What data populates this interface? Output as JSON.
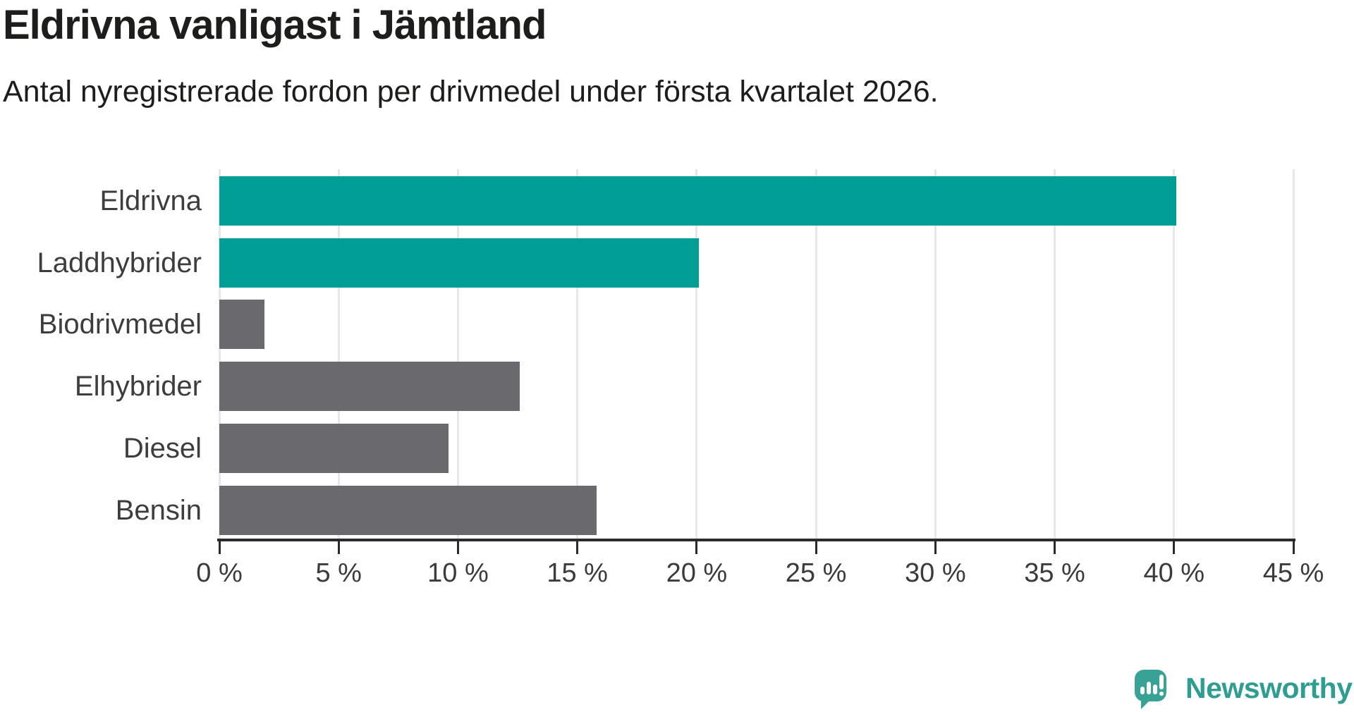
{
  "header": {
    "title": "Eldrivna vanligast i Jämtland",
    "subtitle": "Antal nyregistrerade fordon per drivmedel under första kvartalet 2026."
  },
  "chart_data": {
    "type": "bar",
    "orientation": "horizontal",
    "title": "Eldrivna vanligast i Jämtland",
    "subtitle": "Antal nyregistrerade fordon per drivmedel under första kvartalet 2026.",
    "categories": [
      "Eldrivna",
      "Laddhybrider",
      "Biodrivmedel",
      "Elhybrider",
      "Diesel",
      "Bensin"
    ],
    "values": [
      40.1,
      20.1,
      1.9,
      12.6,
      9.6,
      15.8
    ],
    "unit": "%",
    "xlim": [
      0,
      45
    ],
    "tick_values": [
      0,
      5,
      10,
      15,
      20,
      25,
      30,
      35,
      40,
      45
    ],
    "tick_labels": [
      "0 %",
      "5 %",
      "10 %",
      "15 %",
      "20 %",
      "25 %",
      "30 %",
      "35 %",
      "40 %",
      "45 %"
    ],
    "grid": true,
    "legend": false,
    "colors": [
      "highlight",
      "highlight",
      "default",
      "default",
      "default",
      "default"
    ],
    "palette": {
      "highlight": "#009E95",
      "default": "#6A6A6E",
      "gridline": "#e8e8e8",
      "axis": "#2b2b2b",
      "label": "#3d3d3d"
    }
  },
  "branding": {
    "logo_text": "Newsworthy",
    "logo_text_color": "#2F9D92",
    "logo_icon_color": "#38A296",
    "logo_icon": "newsworthy-chart-speech-bubble-icon"
  }
}
